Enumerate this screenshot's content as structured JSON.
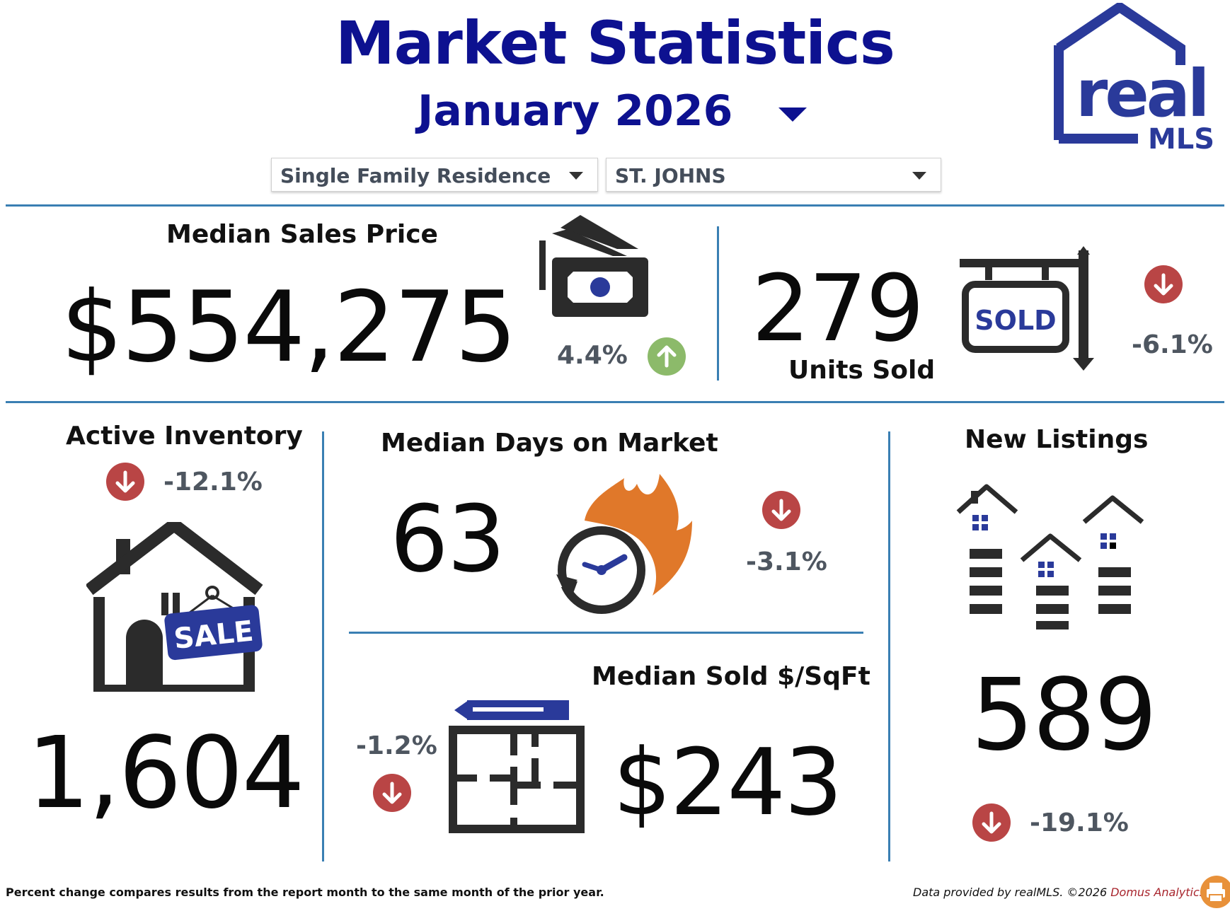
{
  "header": {
    "title": "Market Statistics",
    "month": "January 2026"
  },
  "filters": {
    "property_type": "Single Family Residence",
    "county": "ST. JOHNS"
  },
  "logo": {
    "line1": "real",
    "line2": "MLS",
    "color": "#2a3a9a"
  },
  "metrics": {
    "median_sales_price": {
      "label": "Median Sales Price",
      "value": "$554,275",
      "change": "4.4%",
      "direction": "up"
    },
    "units_sold": {
      "label": "Units Sold",
      "value": "279",
      "change": "-6.1%",
      "direction": "down",
      "sign_text": "SOLD"
    },
    "active_inventory": {
      "label": "Active Inventory",
      "value": "1,604",
      "change": "-12.1%",
      "direction": "down",
      "sign_text": "SALE"
    },
    "median_days_on_market": {
      "label": "Median Days on Market",
      "value": "63",
      "change": "-3.1%",
      "direction": "down"
    },
    "median_sold_per_sqft": {
      "label": "Median Sold $/SqFt",
      "value": "$243",
      "change": "-1.2%",
      "direction": "down"
    },
    "new_listings": {
      "label": "New Listings",
      "value": "589",
      "change": "-19.1%",
      "direction": "down"
    }
  },
  "footer": {
    "note": "Percent change compares results from the report month to the same month of the prior year.",
    "credit": "Data provided by realMLS. ©2026 ",
    "brand": "Domus Analytics"
  },
  "colors": {
    "title": "#0d1190",
    "divider": "#3a7fb3",
    "down": "#b94545",
    "up": "#8cba6a",
    "flame": "#e0782a",
    "icon": "#2b2b2b",
    "accent_blue": "#2a3a9a"
  }
}
